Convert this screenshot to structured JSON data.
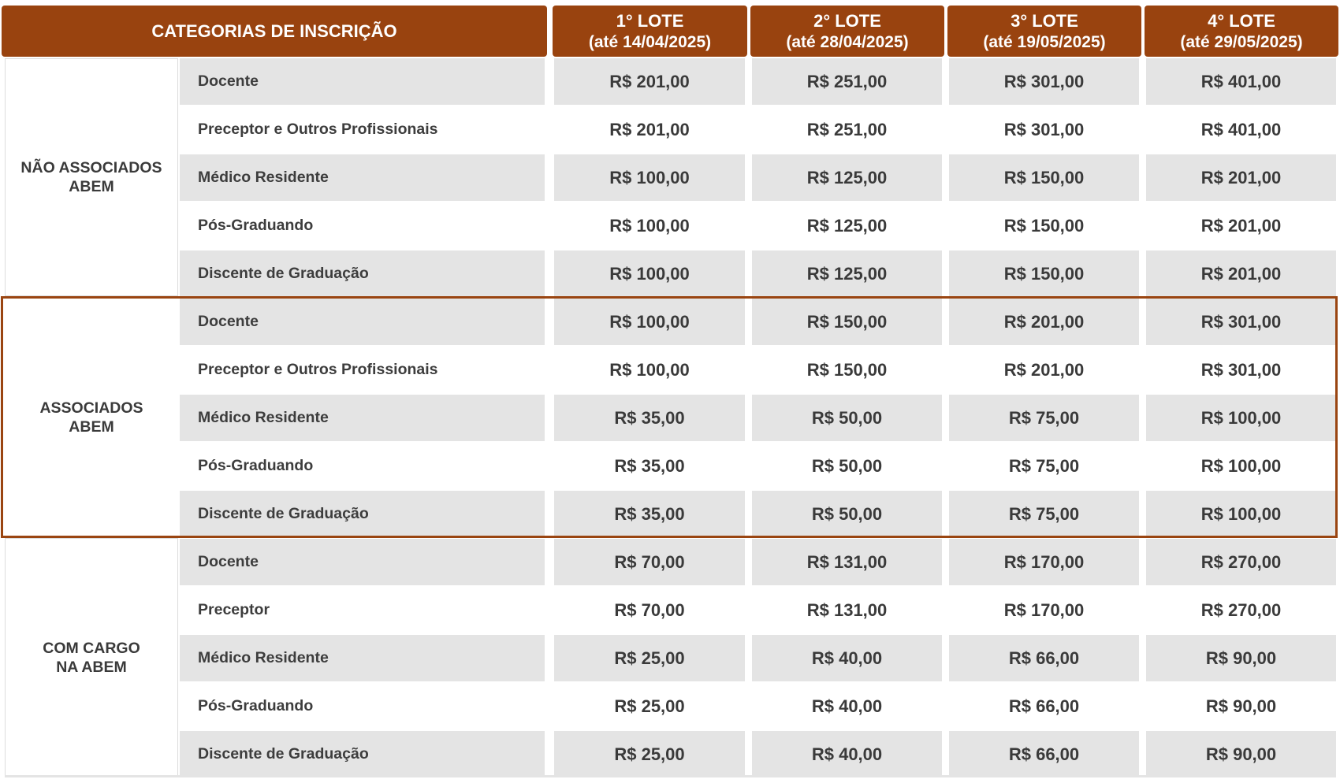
{
  "header": {
    "categories_label": "CATEGORIAS DE INSCRIÇÃO",
    "lots": [
      {
        "name": "1° LOTE",
        "deadline": "(até 14/04/2025)"
      },
      {
        "name": "2° LOTE",
        "deadline": "(até 28/04/2025)"
      },
      {
        "name": "3° LOTE",
        "deadline": "(até 19/05/2025)"
      },
      {
        "name": "4° LOTE",
        "deadline": "(até 29/05/2025)"
      }
    ]
  },
  "groups": [
    {
      "line1": "NÃO ASSOCIADOS",
      "line2": "ABEM",
      "rows": [
        {
          "label": "Docente",
          "prices": [
            "R$ 201,00",
            "R$ 251,00",
            "R$ 301,00",
            "R$ 401,00"
          ]
        },
        {
          "label": "Preceptor e Outros Profissionais",
          "prices": [
            "R$ 201,00",
            "R$ 251,00",
            "R$ 301,00",
            "R$ 401,00"
          ]
        },
        {
          "label": "Médico Residente",
          "prices": [
            "R$ 100,00",
            "R$ 125,00",
            "R$ 150,00",
            "R$ 201,00"
          ]
        },
        {
          "label": "Pós-Graduando",
          "prices": [
            "R$ 100,00",
            "R$ 125,00",
            "R$ 150,00",
            "R$ 201,00"
          ]
        },
        {
          "label": "Discente de Graduação",
          "prices": [
            "R$ 100,00",
            "R$ 125,00",
            "R$ 150,00",
            "R$ 201,00"
          ]
        }
      ]
    },
    {
      "line1": "ASSOCIADOS",
      "line2": "ABEM",
      "rows": [
        {
          "label": "Docente",
          "prices": [
            "R$ 100,00",
            "R$ 150,00",
            "R$ 201,00",
            "R$ 301,00"
          ]
        },
        {
          "label": "Preceptor e Outros Profissionais",
          "prices": [
            "R$ 100,00",
            "R$ 150,00",
            "R$ 201,00",
            "R$ 301,00"
          ]
        },
        {
          "label": "Médico Residente",
          "prices": [
            "R$ 35,00",
            "R$ 50,00",
            "R$ 75,00",
            "R$ 100,00"
          ]
        },
        {
          "label": "Pós-Graduando",
          "prices": [
            "R$ 35,00",
            "R$ 50,00",
            "R$ 75,00",
            "R$ 100,00"
          ]
        },
        {
          "label": "Discente de Graduação",
          "prices": [
            "R$ 35,00",
            "R$ 50,00",
            "R$ 75,00",
            "R$ 100,00"
          ]
        }
      ]
    },
    {
      "line1": "COM CARGO",
      "line2": "NA ABEM",
      "rows": [
        {
          "label": "Docente",
          "prices": [
            "R$ 70,00",
            "R$ 131,00",
            "R$ 170,00",
            "R$ 270,00"
          ]
        },
        {
          "label": "Preceptor",
          "prices": [
            "R$ 70,00",
            "R$ 131,00",
            "R$ 170,00",
            "R$ 270,00"
          ]
        },
        {
          "label": "Médico Residente",
          "prices": [
            "R$ 25,00",
            "R$ 40,00",
            "R$ 66,00",
            "R$ 90,00"
          ]
        },
        {
          "label": "Pós-Graduando",
          "prices": [
            "R$ 25,00",
            "R$ 40,00",
            "R$ 66,00",
            "R$ 90,00"
          ]
        },
        {
          "label": "Discente de Graduação",
          "prices": [
            "R$ 25,00",
            "R$ 40,00",
            "R$ 66,00",
            "R$ 90,00"
          ]
        }
      ]
    }
  ],
  "colors": {
    "header_bg": "#99430f",
    "highlight_border": "#9a4511",
    "row_shade": "#e4e4e4"
  }
}
